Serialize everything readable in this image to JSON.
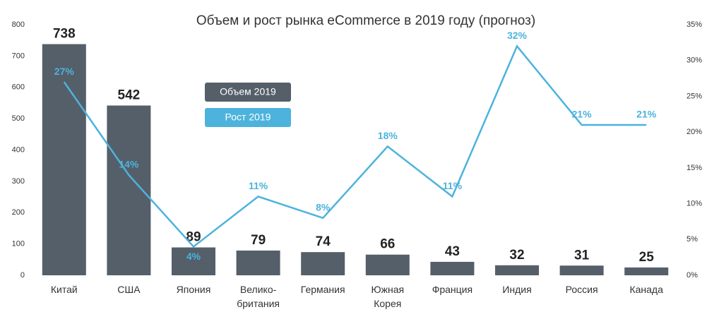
{
  "chart_data": {
    "type": "bar_line",
    "title": "Объем и рост рынка eCommerce в 2019 году (прогноз)",
    "categories": [
      "Китай",
      "США",
      "Япония",
      "Велико-\nбритания",
      "Германия",
      "Южная\nКорея",
      "Франция",
      "Индия",
      "Россия",
      "Канада"
    ],
    "series": [
      {
        "name": "Объем 2019",
        "color": "#555f69",
        "values": [
          738,
          542,
          89,
          79,
          74,
          66,
          43,
          32,
          31,
          25
        ]
      },
      {
        "name": "Рост 2019",
        "color": "#4db3dc",
        "axis": "y2",
        "values": [
          27,
          14,
          4,
          11,
          8,
          18,
          11,
          32,
          21,
          21
        ],
        "value_labels": [
          "27%",
          "14%",
          "4%",
          "11%",
          "8%",
          "18%",
          "11%",
          "32%",
          "21%",
          "21%"
        ]
      }
    ],
    "ylim": [
      0,
      800
    ],
    "yticks": [
      0,
      100,
      200,
      300,
      400,
      500,
      600,
      700,
      800
    ],
    "y2lim": [
      0,
      35
    ],
    "y2ticks": [
      {
        "value": 0,
        "label": "0%"
      },
      {
        "value": 5,
        "label": "5%"
      },
      {
        "value": 10,
        "label": "10%"
      },
      {
        "value": 15,
        "label": "15%"
      },
      {
        "value": 20,
        "label": "20%"
      },
      {
        "value": 25,
        "label": "25%"
      },
      {
        "value": 30,
        "label": "30%"
      },
      {
        "value": 35,
        "label": "35%"
      }
    ],
    "grid": false
  }
}
